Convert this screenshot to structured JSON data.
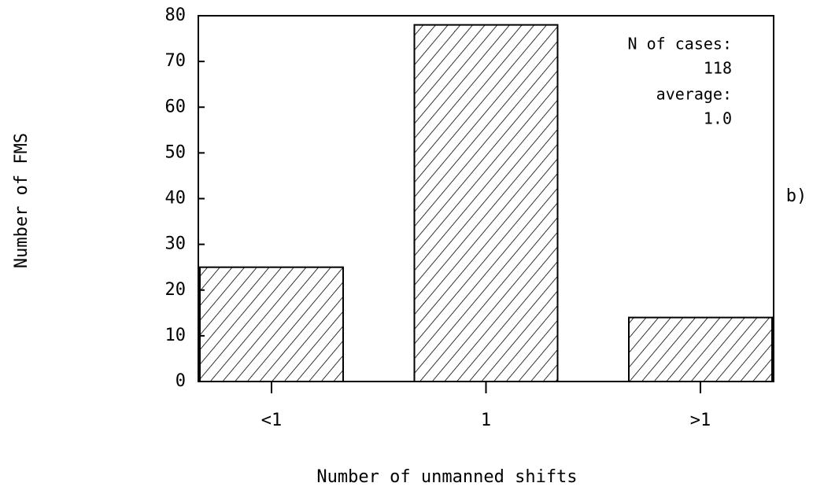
{
  "chart_data": {
    "type": "bar",
    "categories": [
      "<1",
      "1",
      ">1"
    ],
    "values": [
      25,
      78,
      14
    ],
    "color": "#000000",
    "xlabel": "Number of unmanned shifts",
    "ylabel": "Number of FMS",
    "ylim": [
      0,
      80
    ],
    "yticks": [
      0,
      10,
      20,
      30,
      40,
      50,
      60,
      70,
      80
    ],
    "annotations": [
      "N of cases:",
      "118",
      "average:",
      "1.0"
    ],
    "panel_label": "b)"
  }
}
